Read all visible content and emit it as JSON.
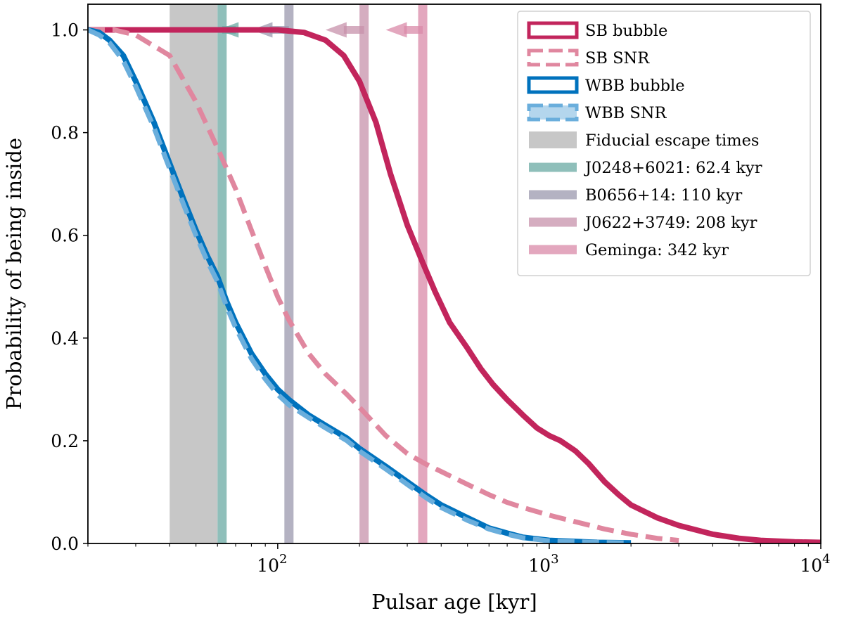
{
  "chart_data": {
    "type": "line",
    "title": "",
    "xlabel": "Pulsar age [kyr]",
    "ylabel": "Probability of being inside",
    "xscale": "log",
    "xlim": [
      20,
      10000
    ],
    "ylim": [
      0,
      1.05
    ],
    "y_ticks": [
      {
        "value": 0.0,
        "label": "0.0"
      },
      {
        "value": 0.2,
        "label": "0.2"
      },
      {
        "value": 0.4,
        "label": "0.4"
      },
      {
        "value": 0.6,
        "label": "0.6"
      },
      {
        "value": 0.8,
        "label": "0.8"
      },
      {
        "value": 1.0,
        "label": "1.0"
      }
    ],
    "x_ticks": [
      {
        "value": 100,
        "base": "10",
        "exp": "2"
      },
      {
        "value": 1000,
        "base": "10",
        "exp": "3"
      },
      {
        "value": 10000,
        "base": "10",
        "exp": "4"
      }
    ],
    "legend_position": "upper right",
    "series": [
      {
        "name": "SB bubble",
        "style": "solid",
        "color": "#c2255c",
        "legend_fill": false,
        "points": [
          [
            20,
            1.0
          ],
          [
            60,
            1.0
          ],
          [
            100,
            1.0
          ],
          [
            125,
            0.995
          ],
          [
            150,
            0.98
          ],
          [
            175,
            0.95
          ],
          [
            200,
            0.9
          ],
          [
            230,
            0.82
          ],
          [
            260,
            0.72
          ],
          [
            300,
            0.62
          ],
          [
            340,
            0.55
          ],
          [
            380,
            0.49
          ],
          [
            430,
            0.43
          ],
          [
            500,
            0.38
          ],
          [
            560,
            0.34
          ],
          [
            620,
            0.31
          ],
          [
            700,
            0.28
          ],
          [
            800,
            0.25
          ],
          [
            900,
            0.225
          ],
          [
            1000,
            0.21
          ],
          [
            1100,
            0.2
          ],
          [
            1250,
            0.18
          ],
          [
            1400,
            0.155
          ],
          [
            1600,
            0.12
          ],
          [
            1800,
            0.095
          ],
          [
            2000,
            0.075
          ],
          [
            2500,
            0.05
          ],
          [
            3000,
            0.035
          ],
          [
            4000,
            0.018
          ],
          [
            5000,
            0.01
          ],
          [
            6000,
            0.006
          ],
          [
            8000,
            0.003
          ],
          [
            10000,
            0.002
          ]
        ]
      },
      {
        "name": "SB SNR",
        "style": "dashed",
        "color": "#e0879f",
        "legend_fill": false,
        "points": [
          [
            20,
            1.0
          ],
          [
            25,
            1.0
          ],
          [
            30,
            0.99
          ],
          [
            40,
            0.95
          ],
          [
            50,
            0.86
          ],
          [
            60,
            0.77
          ],
          [
            70,
            0.69
          ],
          [
            80,
            0.61
          ],
          [
            90,
            0.54
          ],
          [
            100,
            0.48
          ],
          [
            110,
            0.435
          ],
          [
            130,
            0.37
          ],
          [
            150,
            0.33
          ],
          [
            180,
            0.29
          ],
          [
            200,
            0.265
          ],
          [
            250,
            0.21
          ],
          [
            300,
            0.175
          ],
          [
            350,
            0.155
          ],
          [
            400,
            0.14
          ],
          [
            500,
            0.115
          ],
          [
            600,
            0.095
          ],
          [
            700,
            0.08
          ],
          [
            800,
            0.07
          ],
          [
            1000,
            0.055
          ],
          [
            1300,
            0.04
          ],
          [
            1600,
            0.028
          ],
          [
            2000,
            0.018
          ],
          [
            2500,
            0.01
          ],
          [
            3000,
            0.006
          ]
        ]
      },
      {
        "name": "WBB bubble",
        "style": "solid",
        "color": "#0072bd",
        "legend_fill": false,
        "points": [
          [
            20,
            1.0
          ],
          [
            22,
            0.995
          ],
          [
            24,
            0.98
          ],
          [
            27,
            0.95
          ],
          [
            30,
            0.9
          ],
          [
            35,
            0.82
          ],
          [
            40,
            0.74
          ],
          [
            45,
            0.67
          ],
          [
            50,
            0.61
          ],
          [
            55,
            0.56
          ],
          [
            60,
            0.52
          ],
          [
            65,
            0.47
          ],
          [
            70,
            0.43
          ],
          [
            80,
            0.37
          ],
          [
            90,
            0.33
          ],
          [
            100,
            0.3
          ],
          [
            110,
            0.28
          ],
          [
            130,
            0.25
          ],
          [
            150,
            0.23
          ],
          [
            180,
            0.205
          ],
          [
            200,
            0.185
          ],
          [
            250,
            0.15
          ],
          [
            300,
            0.12
          ],
          [
            350,
            0.095
          ],
          [
            400,
            0.075
          ],
          [
            500,
            0.05
          ],
          [
            600,
            0.03
          ],
          [
            700,
            0.02
          ],
          [
            800,
            0.012
          ],
          [
            1000,
            0.006
          ],
          [
            1500,
            0.002
          ],
          [
            2000,
            0.001
          ]
        ]
      },
      {
        "name": "WBB SNR",
        "style": "dashed",
        "color": "#6aaedc",
        "legend_fill": true,
        "points": [
          [
            20,
            1.0
          ],
          [
            22,
            0.99
          ],
          [
            24,
            0.975
          ],
          [
            27,
            0.94
          ],
          [
            30,
            0.89
          ],
          [
            35,
            0.81
          ],
          [
            40,
            0.73
          ],
          [
            45,
            0.66
          ],
          [
            50,
            0.6
          ],
          [
            55,
            0.55
          ],
          [
            60,
            0.51
          ],
          [
            65,
            0.46
          ],
          [
            70,
            0.42
          ],
          [
            80,
            0.36
          ],
          [
            90,
            0.32
          ],
          [
            100,
            0.29
          ],
          [
            110,
            0.27
          ],
          [
            130,
            0.245
          ],
          [
            150,
            0.225
          ],
          [
            180,
            0.2
          ],
          [
            200,
            0.18
          ],
          [
            250,
            0.145
          ],
          [
            300,
            0.115
          ],
          [
            350,
            0.09
          ],
          [
            400,
            0.07
          ],
          [
            500,
            0.045
          ],
          [
            600,
            0.028
          ],
          [
            700,
            0.018
          ],
          [
            800,
            0.011
          ],
          [
            1000,
            0.005
          ],
          [
            1500,
            0.002
          ],
          [
            2000,
            0.001
          ]
        ]
      }
    ],
    "shaded_region": {
      "name": "Fiducial escape times",
      "x_range": [
        40,
        60
      ],
      "color": "#bdbdbd"
    },
    "vlines": [
      {
        "name": "J0248+6021: 62.4 kyr",
        "x": 62.4,
        "color": "#6aa9a3",
        "arrow_tip_x": 60
      },
      {
        "name": "B0656+14: 110 kyr",
        "x": 110,
        "color": "#9b98ae",
        "arrow_tip_x": 80
      },
      {
        "name": "J0622+3749: 208 kyr",
        "x": 208,
        "color": "#c791ab",
        "arrow_tip_x": 150
      },
      {
        "name": "Geminga: 342 kyr",
        "x": 342,
        "color": "#d98aa8",
        "arrow_tip_x": 250
      }
    ]
  }
}
